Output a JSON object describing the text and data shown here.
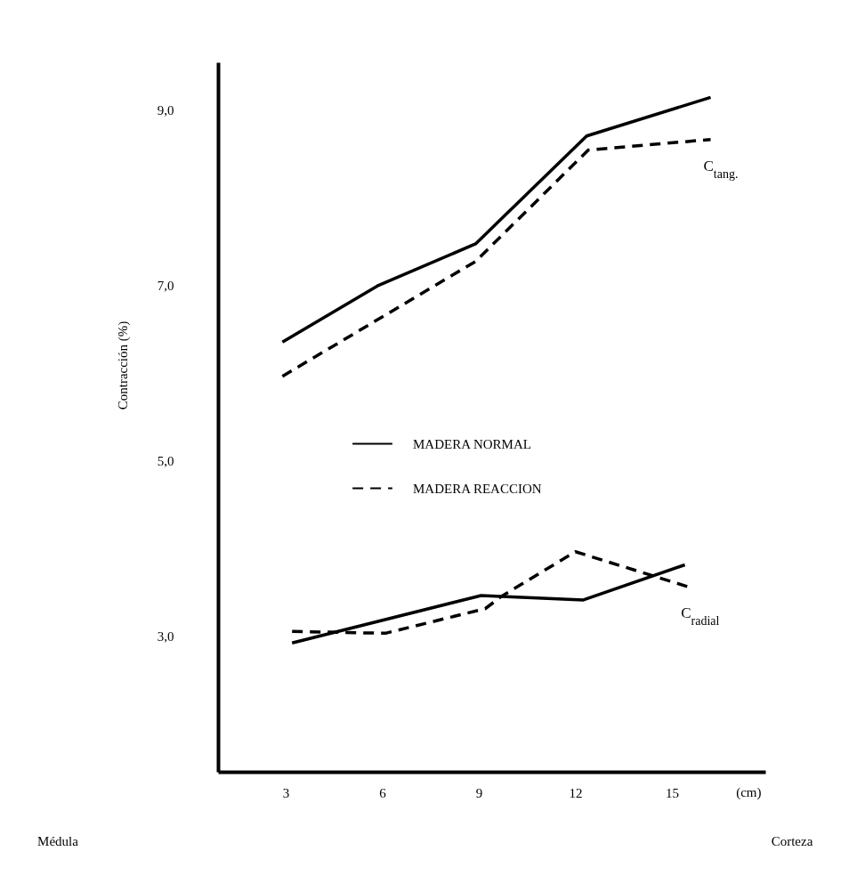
{
  "chart_data": {
    "type": "line",
    "xlabel": "(cm)",
    "ylabel": "Contracción (%)",
    "xlim": [
      0.9,
      17.9
    ],
    "xticks": [
      3,
      6,
      9,
      12,
      15
    ],
    "ylim": [
      1.45,
      9.54
    ],
    "yticks": [
      {
        "value": 3,
        "label": "3,0"
      },
      {
        "value": 5,
        "label": "5,0"
      },
      {
        "value": 7,
        "label": "7,0"
      },
      {
        "value": 9,
        "label": "9,0"
      }
    ],
    "grid": false,
    "legend": "center",
    "marker": "none",
    "series": [
      {
        "name": "MADERA NORMAL",
        "color": "#000000",
        "line_style": "solid",
        "x": [
          2.9,
          5.85,
          8.9,
          12.35,
          16.2
        ],
        "values": [
          6.35,
          6.99,
          7.47,
          8.7,
          9.14
        ]
      },
      {
        "name": "MADERA REACCION",
        "color": "#000000",
        "line_style": "dashed",
        "x": [
          2.9,
          8.9,
          12.4,
          16.2
        ],
        "values": [
          5.96,
          7.27,
          8.54,
          8.66
        ]
      },
      {
        "color": "#000000",
        "line_style": "solid",
        "x": [
          3.2,
          9.07,
          9.7,
          12.25,
          15.4
        ],
        "values": [
          2.92,
          3.46,
          3.45,
          3.41,
          3.81
        ]
      },
      {
        "color": "#000000",
        "line_style": "dashed",
        "x": [
          3.2,
          6.1,
          9.2,
          9.7,
          12.0,
          15.5
        ],
        "values": [
          3.05,
          3.03,
          3.31,
          3.45,
          3.96,
          3.56
        ]
      }
    ],
    "annotations": [
      {
        "text": "C$_{tang.}$",
        "x": 16.2,
        "y": 8.66
      },
      {
        "text": "C$_{radial}$",
        "x": 15.5,
        "y": 3.56
      },
      "Médula",
      "Corteza"
    ]
  }
}
